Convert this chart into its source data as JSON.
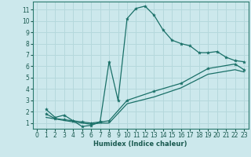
{
  "xlabel": "Humidex (Indice chaleur)",
  "bg_color": "#cce8ec",
  "grid_color": "#b5d8dc",
  "line_color": "#1a7068",
  "xlim": [
    -0.5,
    23.5
  ],
  "ylim": [
    0.5,
    11.7
  ],
  "xticks": [
    0,
    1,
    2,
    3,
    4,
    5,
    6,
    7,
    8,
    9,
    10,
    11,
    12,
    13,
    14,
    15,
    16,
    17,
    18,
    19,
    20,
    21,
    22,
    23
  ],
  "yticks": [
    1,
    2,
    3,
    4,
    5,
    6,
    7,
    8,
    9,
    10,
    11
  ],
  "curve1_x": [
    1,
    2,
    3,
    4,
    5,
    6,
    7,
    8,
    9,
    10,
    11,
    12,
    13,
    14,
    15,
    16,
    17,
    18,
    19,
    20,
    21,
    22,
    23
  ],
  "curve1_y": [
    2.2,
    1.5,
    1.7,
    1.2,
    0.7,
    0.8,
    1.1,
    6.4,
    3.0,
    10.2,
    11.1,
    11.3,
    10.5,
    9.2,
    8.3,
    8.0,
    7.8,
    7.2,
    7.2,
    7.3,
    6.8,
    6.5,
    6.4
  ],
  "curve2_x": [
    1,
    2,
    3,
    4,
    5,
    6,
    7,
    8,
    10,
    13,
    16,
    19,
    22,
    23
  ],
  "curve2_y": [
    1.8,
    1.4,
    1.3,
    1.2,
    1.1,
    1.0,
    1.1,
    1.2,
    3.0,
    3.8,
    4.5,
    5.8,
    6.2,
    5.7
  ],
  "curve3_x": [
    1,
    4,
    5,
    6,
    7,
    8,
    10,
    13,
    16,
    19,
    22,
    23
  ],
  "curve3_y": [
    1.5,
    1.1,
    1.0,
    0.9,
    1.0,
    1.0,
    2.7,
    3.3,
    4.1,
    5.3,
    5.7,
    5.5
  ]
}
